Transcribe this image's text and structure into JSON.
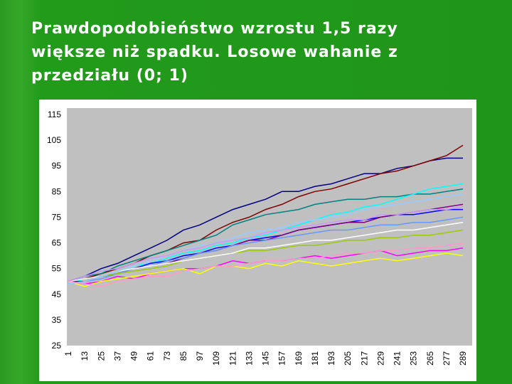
{
  "chart_data": {
    "type": "line",
    "title_lines": [
      "Prawdopodobieństwo wzrostu 1,5 razy",
      "większe niż spadku. Losowe wahanie z",
      "przedziału (0; 1)"
    ],
    "categories": [
      1,
      13,
      25,
      37,
      49,
      61,
      73,
      85,
      97,
      109,
      121,
      133,
      145,
      157,
      169,
      181,
      193,
      205,
      217,
      229,
      241,
      253,
      265,
      277,
      289
    ],
    "ylim": [
      25,
      115
    ],
    "yticks": [
      25,
      35,
      45,
      55,
      65,
      75,
      85,
      95,
      105,
      115
    ],
    "grid": false,
    "series": [
      {
        "color": "#000080",
        "values": [
          50,
          52,
          55,
          57,
          60,
          63,
          66,
          70,
          72,
          75,
          78,
          80,
          82,
          85,
          85,
          87,
          88,
          90,
          92,
          92,
          94,
          95,
          97,
          98,
          98
        ]
      },
      {
        "color": "#800000",
        "values": [
          50,
          51,
          53,
          55,
          57,
          60,
          62,
          65,
          66,
          70,
          73,
          75,
          78,
          80,
          83,
          85,
          86,
          88,
          90,
          92,
          93,
          95,
          97,
          99,
          103
        ]
      },
      {
        "color": "#008080",
        "values": [
          50,
          52,
          53,
          56,
          58,
          60,
          62,
          64,
          66,
          68,
          72,
          74,
          76,
          77,
          78,
          80,
          81,
          82,
          82,
          83,
          83,
          84,
          84,
          85,
          86
        ]
      },
      {
        "color": "#00ffff",
        "values": [
          49,
          51,
          52,
          54,
          56,
          57,
          59,
          61,
          62,
          64,
          65,
          67,
          68,
          70,
          72,
          74,
          76,
          77,
          79,
          80,
          82,
          84,
          86,
          87,
          88
        ]
      },
      {
        "color": "#0000ff",
        "values": [
          50,
          51,
          52,
          53,
          55,
          57,
          58,
          60,
          61,
          63,
          64,
          66,
          67,
          68,
          70,
          71,
          72,
          73,
          74,
          75,
          76,
          76,
          77,
          78,
          78
        ]
      },
      {
        "color": "#800080",
        "values": [
          50,
          50,
          52,
          53,
          55,
          56,
          57,
          59,
          61,
          62,
          64,
          66,
          66,
          68,
          70,
          71,
          72,
          73,
          73,
          75,
          76,
          77,
          78,
          79,
          80
        ]
      },
      {
        "color": "#ff00ff",
        "values": [
          50,
          49,
          50,
          52,
          51,
          53,
          54,
          55,
          55,
          56,
          58,
          57,
          58,
          58,
          59,
          60,
          59,
          60,
          61,
          62,
          60,
          61,
          62,
          62,
          63
        ]
      },
      {
        "color": "#ffff00",
        "values": [
          50,
          48,
          50,
          51,
          52,
          53,
          54,
          55,
          53,
          56,
          56,
          55,
          57,
          56,
          58,
          57,
          56,
          57,
          58,
          59,
          58,
          59,
          60,
          61,
          60
        ]
      },
      {
        "color": "#6699ff",
        "values": [
          49,
          50,
          51,
          53,
          55,
          56,
          58,
          59,
          61,
          62,
          64,
          65,
          66,
          67,
          68,
          69,
          70,
          70,
          71,
          72,
          72,
          73,
          73,
          74,
          75
        ]
      },
      {
        "color": "#99cc00",
        "values": [
          50,
          51,
          52,
          53,
          54,
          55,
          56,
          58,
          59,
          60,
          61,
          62,
          62,
          63,
          64,
          64,
          65,
          66,
          66,
          67,
          67,
          68,
          68,
          69,
          70
        ]
      },
      {
        "color": "#ff99cc",
        "values": [
          50,
          49,
          48,
          50,
          51,
          52,
          52,
          54,
          55,
          56,
          56,
          57,
          58,
          58,
          59,
          59,
          60,
          61,
          61,
          62,
          62,
          63,
          63,
          64,
          65
        ]
      },
      {
        "color": "#ffffff",
        "values": [
          50,
          51,
          52,
          54,
          55,
          56,
          57,
          58,
          59,
          60,
          61,
          63,
          63,
          64,
          65,
          66,
          66,
          67,
          68,
          69,
          70,
          70,
          71,
          72,
          73
        ]
      },
      {
        "color": "#99ccff",
        "values": [
          49,
          50,
          52,
          54,
          56,
          58,
          60,
          62,
          64,
          65,
          67,
          69,
          70,
          71,
          73,
          74,
          75,
          76,
          78,
          79,
          80,
          81,
          82,
          83,
          84
        ]
      },
      {
        "color": "#cc99ff",
        "values": [
          50,
          52,
          54,
          55,
          57,
          59,
          60,
          62,
          63,
          65,
          66,
          67,
          69,
          70,
          71,
          72,
          73,
          74,
          74,
          76,
          76,
          77,
          78,
          78,
          79
        ]
      }
    ]
  }
}
